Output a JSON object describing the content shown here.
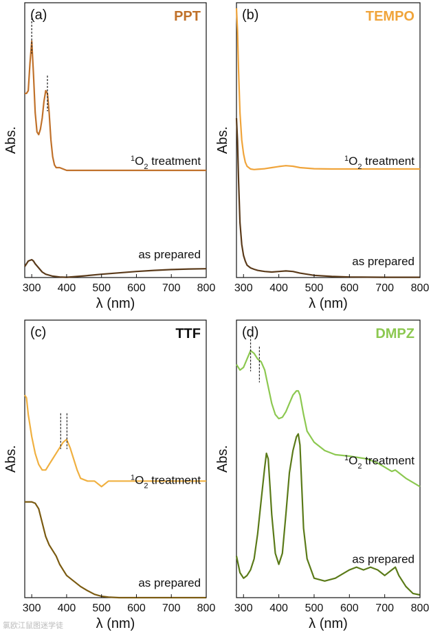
{
  "watermark": "氯欧江鼠图迷学徒",
  "chart_data": [
    {
      "type": "line",
      "panel_label": "(a)",
      "tag": "PPT",
      "tag_color": "#c0712a",
      "xlabel": "λ (nm)",
      "ylabel": "Abs.",
      "xlim": [
        280,
        800
      ],
      "xticks": [
        300,
        400,
        500,
        600,
        700,
        800
      ],
      "ylim": [
        0,
        1
      ],
      "peak_markers": [
        {
          "x": 300,
          "y": 0.88
        },
        {
          "x": 345,
          "y": 0.67
        }
      ],
      "series": [
        {
          "name": "1O2 treatment",
          "label_main": "O",
          "label_sup": "1",
          "label_sub": "2",
          "label_rest": " treatment",
          "label_color": "#111111",
          "color": "#c0712a",
          "x": [
            280,
            285,
            290,
            295,
            300,
            305,
            310,
            315,
            320,
            325,
            330,
            335,
            340,
            345,
            350,
            355,
            360,
            365,
            370,
            380,
            400,
            450,
            500,
            600,
            700,
            800
          ],
          "y": [
            0.67,
            0.67,
            0.68,
            0.78,
            0.86,
            0.74,
            0.6,
            0.53,
            0.52,
            0.54,
            0.58,
            0.64,
            0.68,
            0.67,
            0.6,
            0.5,
            0.44,
            0.41,
            0.4,
            0.4,
            0.39,
            0.39,
            0.39,
            0.39,
            0.39,
            0.39
          ]
        },
        {
          "name": "as prepared",
          "label_main": "as prepared",
          "label_color": "#111111",
          "color": "#5a3a1a",
          "x": [
            280,
            290,
            300,
            305,
            310,
            320,
            330,
            340,
            360,
            380,
            400,
            450,
            500,
            550,
            600,
            650,
            700,
            750,
            800
          ],
          "y": [
            0.04,
            0.06,
            0.065,
            0.06,
            0.05,
            0.035,
            0.02,
            0.012,
            0.005,
            0.002,
            0.001,
            0.006,
            0.012,
            0.017,
            0.022,
            0.026,
            0.029,
            0.031,
            0.032
          ]
        }
      ]
    },
    {
      "type": "line",
      "panel_label": "(b)",
      "tag": "TEMPO",
      "tag_color": "#f0a43a",
      "xlabel": "λ (nm)",
      "ylabel": "Abs.",
      "xlim": [
        280,
        800
      ],
      "xticks": [
        300,
        400,
        500,
        600,
        700,
        800
      ],
      "ylim": [
        0,
        1
      ],
      "peak_markers": [],
      "series": [
        {
          "name": "1O2 treatment",
          "label_main": "O",
          "label_sup": "1",
          "label_sub": "2",
          "label_rest": " treatment",
          "label_color": "#111111",
          "color": "#f0a43a",
          "x": [
            280,
            283,
            286,
            290,
            295,
            300,
            305,
            310,
            320,
            330,
            340,
            360,
            380,
            400,
            420,
            440,
            460,
            500,
            550,
            600,
            700,
            800
          ],
          "y": [
            0.98,
            0.9,
            0.75,
            0.6,
            0.5,
            0.45,
            0.42,
            0.405,
            0.395,
            0.393,
            0.394,
            0.396,
            0.4,
            0.404,
            0.407,
            0.405,
            0.4,
            0.396,
            0.395,
            0.395,
            0.395,
            0.395
          ]
        },
        {
          "name": "as prepared",
          "label_main": "as prepared",
          "label_color": "#111111",
          "color": "#5a3a1a",
          "x": [
            280,
            283,
            286,
            290,
            295,
            300,
            305,
            310,
            320,
            330,
            340,
            360,
            380,
            400,
            420,
            440,
            460,
            500,
            550,
            600,
            700,
            800
          ],
          "y": [
            0.58,
            0.5,
            0.35,
            0.2,
            0.12,
            0.08,
            0.06,
            0.045,
            0.035,
            0.03,
            0.026,
            0.022,
            0.02,
            0.022,
            0.024,
            0.022,
            0.016,
            0.008,
            0.004,
            0.002,
            0.001,
            0.001
          ]
        }
      ]
    },
    {
      "type": "line",
      "panel_label": "(c)",
      "tag": "TTF",
      "tag_color": "#111111",
      "xlabel": "λ (nm)",
      "ylabel": "Abs.",
      "xlim": [
        280,
        800
      ],
      "xticks": [
        300,
        400,
        500,
        600,
        700,
        800
      ],
      "ylim": [
        0,
        1
      ],
      "peak_markers": [
        {
          "x": 383,
          "y": 0.6
        },
        {
          "x": 401,
          "y": 0.6
        }
      ],
      "series": [
        {
          "name": "1O2 treatment",
          "label_main": "O",
          "label_sup": "1",
          "label_sub": "2",
          "label_rest": " treatment",
          "label_color": "#111111",
          "color": "#f0b040",
          "x": [
            280,
            285,
            290,
            300,
            310,
            320,
            330,
            340,
            350,
            360,
            370,
            380,
            390,
            400,
            410,
            420,
            430,
            440,
            460,
            480,
            500,
            520,
            550,
            600,
            700,
            800
          ],
          "y": [
            0.73,
            0.72,
            0.66,
            0.58,
            0.52,
            0.48,
            0.46,
            0.46,
            0.48,
            0.5,
            0.52,
            0.54,
            0.56,
            0.57,
            0.54,
            0.5,
            0.46,
            0.43,
            0.42,
            0.42,
            0.4,
            0.42,
            0.42,
            0.42,
            0.42,
            0.42
          ]
        },
        {
          "name": "as prepared",
          "label_main": "as prepared",
          "label_color": "#111111",
          "color": "#7a5a10",
          "x": [
            280,
            290,
            300,
            310,
            320,
            330,
            340,
            350,
            360,
            370,
            380,
            390,
            400,
            420,
            440,
            460,
            480,
            500,
            520,
            550,
            600,
            700,
            800
          ],
          "y": [
            0.345,
            0.345,
            0.345,
            0.34,
            0.32,
            0.27,
            0.22,
            0.19,
            0.17,
            0.15,
            0.12,
            0.1,
            0.08,
            0.06,
            0.04,
            0.025,
            0.012,
            0.005,
            0.002,
            0.0,
            0.0,
            0.0,
            0.0
          ]
        }
      ]
    },
    {
      "type": "line",
      "panel_label": "(d)",
      "tag": "DMPZ",
      "tag_color": "#8cc850",
      "xlabel": "λ (nm)",
      "ylabel": "Abs.",
      "xlim": [
        280,
        800
      ],
      "xticks": [
        300,
        400,
        500,
        600,
        700,
        800
      ],
      "ylim": [
        0,
        1
      ],
      "peak_markers": [
        {
          "x": 320,
          "y": 0.88
        },
        {
          "x": 345,
          "y": 0.84
        }
      ],
      "series": [
        {
          "name": "1O2 treatment",
          "label_main": "O",
          "label_sup": "1",
          "label_sub": "2",
          "label_rest": " treatment",
          "label_color": "#111111",
          "color": "#8cc850",
          "x": [
            280,
            290,
            300,
            310,
            320,
            330,
            340,
            350,
            360,
            370,
            380,
            390,
            400,
            410,
            420,
            430,
            440,
            450,
            455,
            460,
            470,
            480,
            500,
            530,
            560,
            600,
            650,
            680,
            700,
            720,
            730,
            740,
            760,
            780,
            800
          ],
          "y": [
            0.84,
            0.82,
            0.83,
            0.86,
            0.89,
            0.88,
            0.86,
            0.85,
            0.82,
            0.76,
            0.7,
            0.66,
            0.645,
            0.65,
            0.67,
            0.7,
            0.73,
            0.745,
            0.745,
            0.73,
            0.66,
            0.6,
            0.56,
            0.53,
            0.515,
            0.51,
            0.5,
            0.485,
            0.47,
            0.455,
            0.46,
            0.45,
            0.43,
            0.415,
            0.4
          ]
        },
        {
          "name": "as prepared",
          "label_main": "as prepared",
          "label_color": "#111111",
          "color": "#5a7a18",
          "x": [
            280,
            290,
            300,
            310,
            320,
            330,
            340,
            350,
            360,
            365,
            370,
            375,
            380,
            390,
            400,
            410,
            420,
            430,
            440,
            450,
            455,
            460,
            465,
            470,
            480,
            500,
            530,
            560,
            600,
            620,
            640,
            660,
            680,
            700,
            720,
            730,
            740,
            760,
            780,
            800
          ],
          "y": [
            0.15,
            0.09,
            0.07,
            0.08,
            0.1,
            0.14,
            0.23,
            0.35,
            0.47,
            0.52,
            0.5,
            0.4,
            0.3,
            0.16,
            0.12,
            0.16,
            0.3,
            0.45,
            0.53,
            0.58,
            0.59,
            0.55,
            0.4,
            0.25,
            0.14,
            0.07,
            0.06,
            0.07,
            0.1,
            0.11,
            0.1,
            0.11,
            0.1,
            0.08,
            0.1,
            0.11,
            0.08,
            0.04,
            0.015,
            0.01
          ]
        }
      ]
    }
  ]
}
